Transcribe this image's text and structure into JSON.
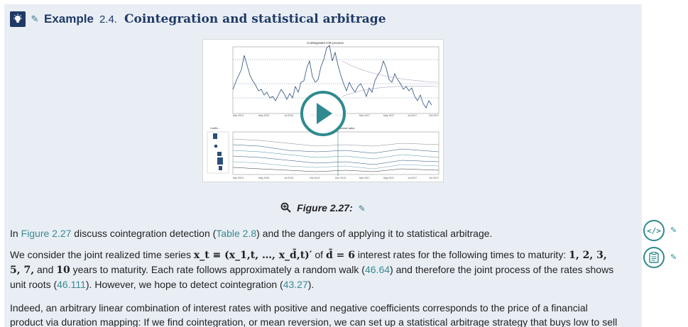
{
  "example": {
    "label": "Example",
    "number": "2.4.",
    "title": "Cointegration and statistical arbitrage"
  },
  "figure": {
    "chart_title": "Cointegrated CIR process",
    "lower_title": "Interest rates",
    "legend_label": "Coeffic...",
    "x_ticks": [
      "Mar 2013",
      "May 2013",
      "Jul 2013",
      "Oct 2013",
      "Dec 2013",
      "Mar 2017",
      "May 2017",
      "Jul 2017",
      "Oct 2017"
    ],
    "caption": "Figure 2.27:",
    "icons": {
      "caption": "magnifier-plus-icon",
      "play": "play-icon"
    }
  },
  "paragraphs": {
    "p1_a": "In ",
    "p1_ref1": "Figure 2.27",
    "p1_b": " discuss cointegration detection (",
    "p1_ref2": "Table 2.8",
    "p1_c": ") and the dangers of applying it to statistical arbitrage.",
    "p2_a": "We consider the joint realized time series ",
    "p2_math1": "x_t ≡ (x_1,t, …, x_d̄,t)′",
    "p2_b": " of ",
    "p2_math2": "d̄ = 6",
    "p2_c": " interest rates for the following times to maturity: ",
    "p2_math3": "1, 2, 3, 5, 7,",
    "p2_d": " and ",
    "p2_math4": "10",
    "p2_e": " years to maturity. Each rate follows approximately a random walk (",
    "p2_ref1": "46.64",
    "p2_f": ") and therefore the joint process of the rates shows unit roots (",
    "p2_ref2": "46.111",
    "p2_g": "). However, we hope to detect cointegration (",
    "p2_ref3": "43.27",
    "p2_h": ").",
    "p3": "Indeed, an arbitrary linear combination of interest rates with positive and negative coefficients corresponds to the price of a financial product via duration mapping: If we find cointegration, or mean reversion, we can set up a statistical arbitrage strategy that buys low to sell"
  },
  "side": {
    "code_icon": "</>",
    "code_name": "code-icon",
    "doc_name": "document-icon",
    "link_glyph": "✎"
  }
}
